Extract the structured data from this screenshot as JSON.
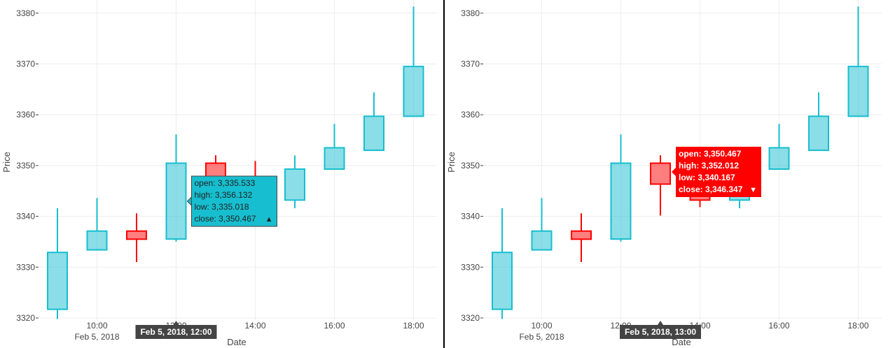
{
  "charts": [
    {
      "chart_data": {
        "type": "candlestick",
        "xlabel": "Date",
        "ylabel": "Price",
        "ylim": [
          3320,
          3380
        ],
        "yticks": [
          3320,
          3330,
          3340,
          3350,
          3360,
          3370,
          3380
        ],
        "ytick_labels": [
          "3320",
          "3330",
          "3340",
          "3350",
          "3360",
          "3370",
          "3380"
        ],
        "xticks": [
          "10:00",
          "12:00",
          "14:00",
          "16:00",
          "18:00"
        ],
        "xtick_sublabel": "Feb 5, 2018",
        "date": "Feb 5, 2018",
        "increasing_color": "#17becf",
        "decreasing_color": "#ff0000",
        "candles": [
          {
            "time": "09:00",
            "open": 3321.7,
            "high": 3341.6,
            "low": 3319.8,
            "close": 3332.9
          },
          {
            "time": "10:00",
            "open": 3333.4,
            "high": 3343.6,
            "low": 3333.4,
            "close": 3337.1
          },
          {
            "time": "11:00",
            "open": 3337.1,
            "high": 3340.6,
            "low": 3331.0,
            "close": 3335.5
          },
          {
            "time": "12:00",
            "open": 3335.533,
            "high": 3356.132,
            "low": 3335.018,
            "close": 3350.467
          },
          {
            "time": "13:00",
            "open": 3350.467,
            "high": 3352.012,
            "low": 3340.167,
            "close": 3346.347
          },
          {
            "time": "14:00",
            "open": 3346.3,
            "high": 3350.9,
            "low": 3341.8,
            "close": 3343.2
          },
          {
            "time": "15:00",
            "open": 3343.2,
            "high": 3352.0,
            "low": 3341.6,
            "close": 3349.3
          },
          {
            "time": "16:00",
            "open": 3349.3,
            "high": 3358.2,
            "low": 3349.3,
            "close": 3353.5
          },
          {
            "time": "17:00",
            "open": 3353.0,
            "high": 3364.4,
            "low": 3353.0,
            "close": 3359.7
          },
          {
            "time": "18:00",
            "open": 3359.7,
            "high": 3381.3,
            "low": 3359.7,
            "close": 3369.5
          }
        ]
      },
      "hover": {
        "index": 3,
        "xlabel": "Feb 5, 2018, 12:00",
        "lines": [
          "open: 3,335.533",
          "high: 3,356.132",
          "low: 3,335.018",
          "close: 3,350.467"
        ],
        "arrow": "▲"
      }
    },
    {
      "chart_data": {
        "type": "candlestick",
        "xlabel": "Date",
        "ylabel": "Price",
        "ylim": [
          3320,
          3380
        ],
        "yticks": [
          3320,
          3330,
          3340,
          3350,
          3360,
          3370,
          3380
        ],
        "ytick_labels": [
          "3320",
          "3330",
          "3340",
          "3350",
          "3360",
          "3370",
          "3380"
        ],
        "xticks": [
          "10:00",
          "12:00",
          "14:00",
          "16:00",
          "18:00"
        ],
        "xtick_sublabel": "Feb 5, 2018",
        "date": "Feb 5, 2018",
        "increasing_color": "#17becf",
        "decreasing_color": "#ff0000",
        "candles": [
          {
            "time": "09:00",
            "open": 3321.7,
            "high": 3341.6,
            "low": 3319.8,
            "close": 3332.9
          },
          {
            "time": "10:00",
            "open": 3333.4,
            "high": 3343.6,
            "low": 3333.4,
            "close": 3337.1
          },
          {
            "time": "11:00",
            "open": 3337.1,
            "high": 3340.6,
            "low": 3331.0,
            "close": 3335.5
          },
          {
            "time": "12:00",
            "open": 3335.533,
            "high": 3356.132,
            "low": 3335.018,
            "close": 3350.467
          },
          {
            "time": "13:00",
            "open": 3350.467,
            "high": 3352.012,
            "low": 3340.167,
            "close": 3346.347
          },
          {
            "time": "14:00",
            "open": 3346.3,
            "high": 3350.9,
            "low": 3341.8,
            "close": 3343.2
          },
          {
            "time": "15:00",
            "open": 3343.2,
            "high": 3352.0,
            "low": 3341.6,
            "close": 3349.3
          },
          {
            "time": "16:00",
            "open": 3349.3,
            "high": 3358.2,
            "low": 3349.3,
            "close": 3353.5
          },
          {
            "time": "17:00",
            "open": 3353.0,
            "high": 3364.4,
            "low": 3353.0,
            "close": 3359.7
          },
          {
            "time": "18:00",
            "open": 3359.7,
            "high": 3381.3,
            "low": 3359.7,
            "close": 3369.5
          }
        ]
      },
      "hover": {
        "index": 4,
        "xlabel": "Feb 5, 2018, 13:00",
        "lines": [
          "open: 3,350.467",
          "high: 3,352.012",
          "low: 3,340.167",
          "close: 3,346.347"
        ],
        "arrow": "▼"
      }
    }
  ]
}
